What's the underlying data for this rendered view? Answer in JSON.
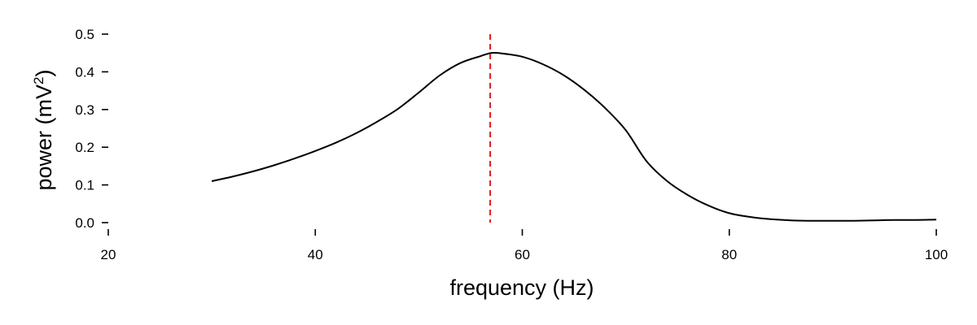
{
  "chart_data": {
    "type": "line",
    "xlabel": "frequency (Hz)",
    "ylabel": "power (mV",
    "ylabel_superscript": "2",
    "ylabel_close": ")",
    "xlim": [
      20,
      100
    ],
    "ylim": [
      0,
      0.5
    ],
    "xticks": [
      20,
      40,
      60,
      80,
      100
    ],
    "xtick_labels": [
      "20",
      "40",
      "60",
      "80",
      "100"
    ],
    "yticks": [
      0.0,
      0.1,
      0.2,
      0.3,
      0.4,
      0.5
    ],
    "ytick_labels": [
      "0.0",
      "0.1",
      "0.2",
      "0.3",
      "0.4",
      "0.5"
    ],
    "grid": false,
    "series": [
      {
        "color": "#000000",
        "x": [
          30,
          32,
          34,
          36,
          38,
          40,
          42,
          44,
          46,
          48,
          50,
          52,
          54,
          56,
          57,
          58,
          60,
          62,
          64,
          66,
          68,
          70,
          72,
          74,
          76,
          78,
          80,
          82,
          84,
          86,
          88,
          90,
          92,
          94,
          96,
          98,
          100
        ],
        "y": [
          0.11,
          0.122,
          0.136,
          0.152,
          0.17,
          0.19,
          0.212,
          0.238,
          0.268,
          0.302,
          0.345,
          0.39,
          0.423,
          0.442,
          0.45,
          0.449,
          0.44,
          0.42,
          0.391,
          0.352,
          0.304,
          0.245,
          0.163,
          0.11,
          0.073,
          0.045,
          0.025,
          0.015,
          0.009,
          0.006,
          0.005,
          0.005,
          0.005,
          0.006,
          0.007,
          0.007,
          0.008
        ]
      }
    ],
    "annotations": [
      {
        "type": "vline",
        "x": 56.9,
        "y_range": [
          0,
          0.5
        ],
        "color": "#e41a1c",
        "style": "dashed"
      }
    ]
  }
}
